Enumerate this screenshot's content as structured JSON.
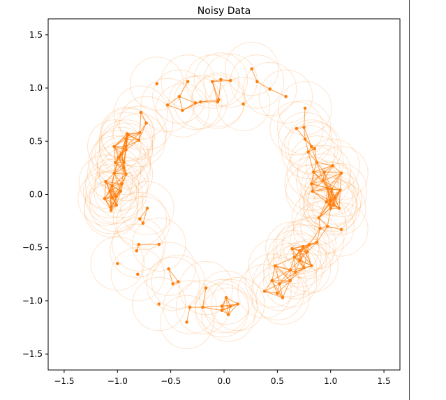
{
  "chart_data": {
    "type": "scatter",
    "title": "Noisy Data",
    "xlabel": "",
    "ylabel": "",
    "xlim": [
      -1.65,
      1.65
    ],
    "ylim": [
      -1.65,
      1.65
    ],
    "xticks": [
      -1.5,
      -1.0,
      -0.5,
      0.0,
      0.5,
      1.0,
      1.5
    ],
    "yticks": [
      -1.5,
      -1.0,
      -0.5,
      0.0,
      0.5,
      1.0,
      1.5
    ],
    "xtick_labels": [
      "−1.5",
      "−1.0",
      "−0.5",
      "0.0",
      "0.5",
      "1.0",
      "1.5"
    ],
    "ytick_labels": [
      "−1.5",
      "−1.0",
      "−0.5",
      "0.0",
      "0.5",
      "1.0",
      "1.5"
    ],
    "grid": false,
    "color": "#ff7f0e",
    "circle_radius": 0.25,
    "points": [
      [
        -0.63,
        1.04
      ],
      [
        -0.53,
        0.84
      ],
      [
        -0.42,
        0.92
      ],
      [
        -0.39,
        0.79
      ],
      [
        -0.34,
        1.06
      ],
      [
        -0.27,
        0.86
      ],
      [
        -0.22,
        0.87
      ],
      [
        -0.11,
        1.06
      ],
      [
        -0.06,
        0.87
      ],
      [
        -0.05,
        0.89
      ],
      [
        -0.03,
        1.08
      ],
      [
        0.06,
        1.07
      ],
      [
        0.18,
        0.85
      ],
      [
        0.26,
        1.18
      ],
      [
        0.31,
        1.06
      ],
      [
        0.43,
        0.99
      ],
      [
        0.58,
        0.92
      ],
      [
        0.76,
        0.81
      ],
      [
        0.68,
        0.62
      ],
      [
        0.75,
        0.63
      ],
      [
        0.76,
        0.52
      ],
      [
        0.82,
        0.45
      ],
      [
        0.85,
        0.43
      ],
      [
        0.79,
        0.4
      ],
      [
        0.87,
        0.3
      ],
      [
        0.84,
        0.21
      ],
      [
        0.94,
        0.21
      ],
      [
        1.02,
        0.27
      ],
      [
        1.1,
        0.2
      ],
      [
        0.93,
        0.13
      ],
      [
        0.97,
        0.06
      ],
      [
        0.82,
        0.1
      ],
      [
        1.01,
        0.05
      ],
      [
        1.09,
        0.04
      ],
      [
        0.83,
        0.03
      ],
      [
        1.04,
        -0.03
      ],
      [
        1.0,
        -0.06
      ],
      [
        0.96,
        -0.07
      ],
      [
        0.99,
        -0.09
      ],
      [
        1.08,
        -0.13
      ],
      [
        1.0,
        -0.13
      ],
      [
        0.89,
        -0.22
      ],
      [
        1.03,
        -0.1
      ],
      [
        1.1,
        -0.33
      ],
      [
        0.97,
        -0.3
      ],
      [
        0.9,
        -0.32
      ],
      [
        0.87,
        -0.45
      ],
      [
        0.8,
        -0.47
      ],
      [
        0.74,
        -0.49
      ],
      [
        0.64,
        -0.51
      ],
      [
        0.71,
        -0.53
      ],
      [
        0.78,
        -0.54
      ],
      [
        0.66,
        -0.59
      ],
      [
        0.71,
        -0.62
      ],
      [
        0.82,
        -0.67
      ],
      [
        0.75,
        -0.69
      ],
      [
        0.62,
        -0.71
      ],
      [
        0.67,
        -0.73
      ],
      [
        0.48,
        -0.67
      ],
      [
        0.62,
        -0.81
      ],
      [
        0.52,
        -0.84
      ],
      [
        0.45,
        -0.81
      ],
      [
        0.38,
        -0.91
      ],
      [
        0.5,
        -0.93
      ],
      [
        0.55,
        -0.97
      ],
      [
        0.13,
        -1.03
      ],
      [
        0.02,
        -0.97
      ],
      [
        0.06,
        -1.05
      ],
      [
        -0.02,
        -1.05
      ],
      [
        -0.17,
        -0.88
      ],
      [
        -0.02,
        -1.09
      ],
      [
        0.04,
        -1.13
      ],
      [
        -0.2,
        -1.06
      ],
      [
        -0.32,
        -1.06
      ],
      [
        -0.35,
        -1.2
      ],
      [
        -0.43,
        -0.82
      ],
      [
        -0.48,
        -0.84
      ],
      [
        -0.52,
        -0.7
      ],
      [
        -0.61,
        -1.03
      ],
      [
        -0.61,
        -0.47
      ],
      [
        -0.8,
        -0.47
      ],
      [
        -0.82,
        -0.53
      ],
      [
        -0.81,
        -0.75
      ],
      [
        -1.0,
        -0.65
      ],
      [
        -0.76,
        -0.27
      ],
      [
        -0.72,
        -0.13
      ],
      [
        -0.79,
        -0.23
      ],
      [
        -1.01,
        -0.1
      ],
      [
        -1.06,
        -0.15
      ],
      [
        -1.06,
        -0.12
      ],
      [
        -1.05,
        -0.03
      ],
      [
        -1.01,
        -0.02
      ],
      [
        -1.12,
        -0.04
      ],
      [
        -1.07,
        0.03
      ],
      [
        -0.97,
        0.03
      ],
      [
        -1.05,
        0.08
      ],
      [
        -1.11,
        0.12
      ],
      [
        -0.92,
        0.19
      ],
      [
        -0.94,
        0.3
      ],
      [
        -1.02,
        0.3
      ],
      [
        -0.92,
        0.42
      ],
      [
        -0.92,
        0.45
      ],
      [
        -1.03,
        0.45
      ],
      [
        -0.96,
        0.38
      ],
      [
        -0.92,
        0.52
      ],
      [
        -0.9,
        0.56
      ],
      [
        -0.8,
        0.51
      ],
      [
        -0.79,
        0.58
      ],
      [
        -0.73,
        0.67
      ],
      [
        -0.78,
        0.77
      ],
      [
        -0.91,
        0.57
      ],
      [
        -0.94,
        0.25
      ],
      [
        -0.99,
        0.35
      ],
      [
        -1.03,
        0.2
      ],
      [
        -0.96,
        0.1
      ]
    ]
  }
}
